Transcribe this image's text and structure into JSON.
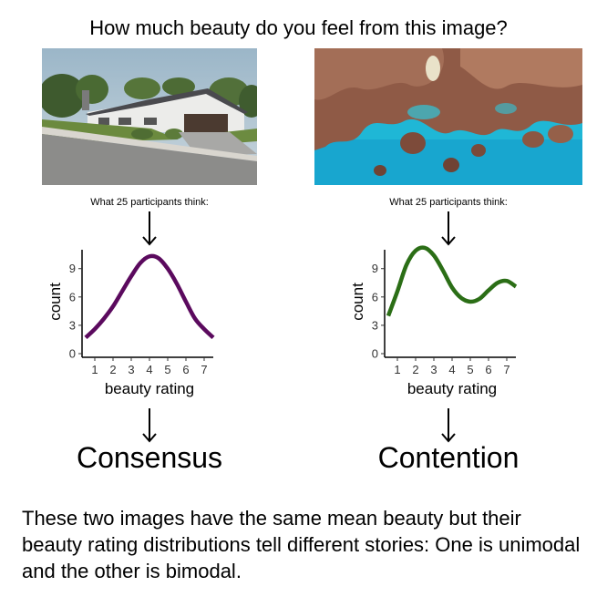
{
  "title": "How much beauty do you feel from this image?",
  "panels": [
    {
      "participants_text": "What 25 participants think:",
      "verdict": "Consensus",
      "curve_color": "#5b0a5e",
      "image_subject": "suburban house"
    },
    {
      "participants_text": "What 25 participants think:",
      "verdict": "Contention",
      "curve_color": "#2b6e16",
      "image_subject": "aerial coral reef"
    }
  ],
  "caption": "These two images have the same mean beauty but their beauty rating distributions tell different stories: One is unimodal and the other is bimodal.",
  "chart_data": [
    {
      "type": "line",
      "xlabel": "beauty rating",
      "ylabel": "count",
      "x_ticks": [
        1,
        2,
        3,
        4,
        5,
        6,
        7
      ],
      "y_ticks": [
        0,
        3,
        6,
        9
      ],
      "xlim": [
        0.5,
        7.5
      ],
      "ylim": [
        0,
        11
      ],
      "x": [
        0.5,
        1,
        1.5,
        2,
        2.5,
        3,
        3.5,
        4,
        4.5,
        5,
        5.5,
        6,
        6.5,
        7,
        7.5
      ],
      "y": [
        1.7,
        2.6,
        3.7,
        5.0,
        6.6,
        8.2,
        9.6,
        10.3,
        10.1,
        9.0,
        7.4,
        5.5,
        3.7,
        2.6,
        1.7
      ]
    },
    {
      "type": "line",
      "xlabel": "beauty rating",
      "ylabel": "count",
      "x_ticks": [
        1,
        2,
        3,
        4,
        5,
        6,
        7
      ],
      "y_ticks": [
        0,
        3,
        6,
        9
      ],
      "xlim": [
        0.5,
        7.5
      ],
      "ylim": [
        0,
        11
      ],
      "x": [
        0.5,
        1,
        1.5,
        2,
        2.5,
        3,
        3.5,
        4,
        4.5,
        5,
        5.5,
        6,
        6.5,
        7,
        7.5
      ],
      "y": [
        4.0,
        6.6,
        9.4,
        10.9,
        11.2,
        10.4,
        8.8,
        7.0,
        5.9,
        5.5,
        5.8,
        6.7,
        7.5,
        7.7,
        7.1
      ]
    }
  ]
}
